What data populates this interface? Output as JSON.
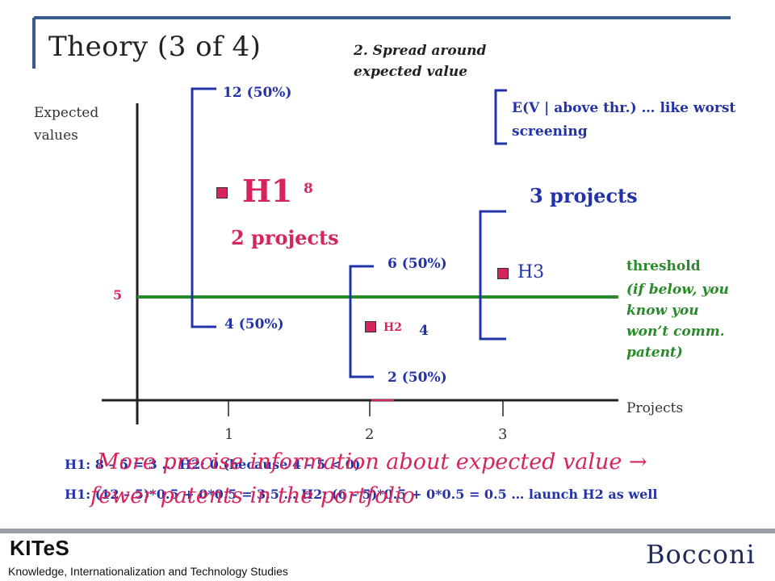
{
  "title": "Theory (3 of 4)",
  "topic": "2. Spread around expected value",
  "axes": {
    "ylabel": "Expected values",
    "xlabel": "Projects",
    "ytick": "5",
    "xticks": [
      "1",
      "2",
      "3"
    ]
  },
  "h1": {
    "label": "H1",
    "value": "8",
    "high": "12 (50%)",
    "low": "4 (50%)",
    "projects": "2 projects"
  },
  "h2": {
    "label": "H2",
    "value": "4",
    "high": "6 (50%)",
    "low": "2 (50%)"
  },
  "h3": {
    "label": "H3",
    "projects": "3 projects",
    "note": "E(V | above thr.) … like worst screening"
  },
  "threshold": {
    "label": "threshold",
    "note": "(if below, you know you won’t comm. patent)"
  },
  "calc": {
    "line1": "H1: 8 – 5 = 3 … H2: 0 (because 4 – 5 < 0)",
    "line2": "H1: (12 – 5)*0.5 + 0*0.5 = 3.5 … H2: (6 – 5)*0.5 + 0*0.5 = 0.5 … launch H2 as well"
  },
  "overlay": {
    "line1": "More precise information about expected value →",
    "line2": "fewer patents in the portfolio"
  },
  "footer": {
    "brand": "KITeS",
    "brand_full": "Knowledge, Internationalization and Technology Studies",
    "university": "Bocconi"
  },
  "colors": {
    "accent_blue": "#2233aa",
    "accent_pink": "#d6245c",
    "threshold_green": "#2a8a2a",
    "title_bar": "#3a5a8c"
  }
}
